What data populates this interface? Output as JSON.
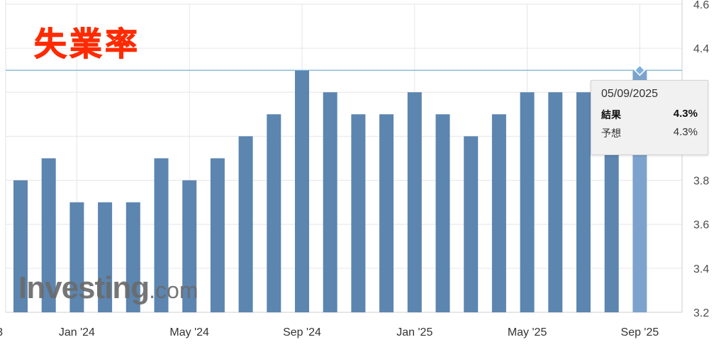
{
  "chart_data": {
    "type": "bar",
    "title": "失業率",
    "ylim": [
      3.2,
      4.6
    ],
    "yticks": [
      "3.2",
      "3.4",
      "3.6",
      "3.8",
      "4.0",
      "4.2",
      "4.4",
      "4.6"
    ],
    "yticks_visible": [
      "3.2",
      "3.4",
      "3.6",
      "3.8",
      "4.4",
      "4.6"
    ],
    "xtick_labels": [
      {
        "index": -1,
        "label": "3"
      },
      {
        "index": 2,
        "label": "Jan '24"
      },
      {
        "index": 6,
        "label": "May '24"
      },
      {
        "index": 10,
        "label": "Sep '24"
      },
      {
        "index": 14,
        "label": "Jan '25"
      },
      {
        "index": 18,
        "label": "May '25"
      },
      {
        "index": 22,
        "label": "Sep '25"
      }
    ],
    "categories": [
      "Nov '23",
      "Dec '23",
      "Jan '24",
      "Feb '24",
      "Mar '24",
      "Apr '24",
      "May '24",
      "Jun '24",
      "Jul '24",
      "Aug '24",
      "Sep '24",
      "Oct '24",
      "Nov '24",
      "Dec '24",
      "Jan '25",
      "Feb '25",
      "Mar '25",
      "Apr '25",
      "May '25",
      "Jun '25",
      "Jul '25",
      "Aug '25",
      "Sep '25"
    ],
    "values": [
      3.8,
      3.9,
      3.7,
      3.7,
      3.7,
      3.9,
      3.8,
      3.9,
      4.0,
      4.1,
      4.3,
      4.2,
      4.1,
      4.1,
      4.2,
      4.1,
      4.0,
      4.1,
      4.2,
      4.2,
      4.2,
      4.2,
      4.3
    ],
    "highlighted_index": 22,
    "reference_line": 4.3,
    "grid": true,
    "colors": {
      "bar": "#5c85b0",
      "bar_highlight": "#7da3cc",
      "reference": "#7ab0d4",
      "title": "#ff2a00"
    }
  },
  "tooltip": {
    "date": "05/09/2025",
    "actual_label": "結果",
    "actual_value": "4.3%",
    "forecast_label": "予想",
    "forecast_value": "4.3%"
  },
  "watermark": {
    "brand": "Investing",
    "domain": ".com"
  }
}
